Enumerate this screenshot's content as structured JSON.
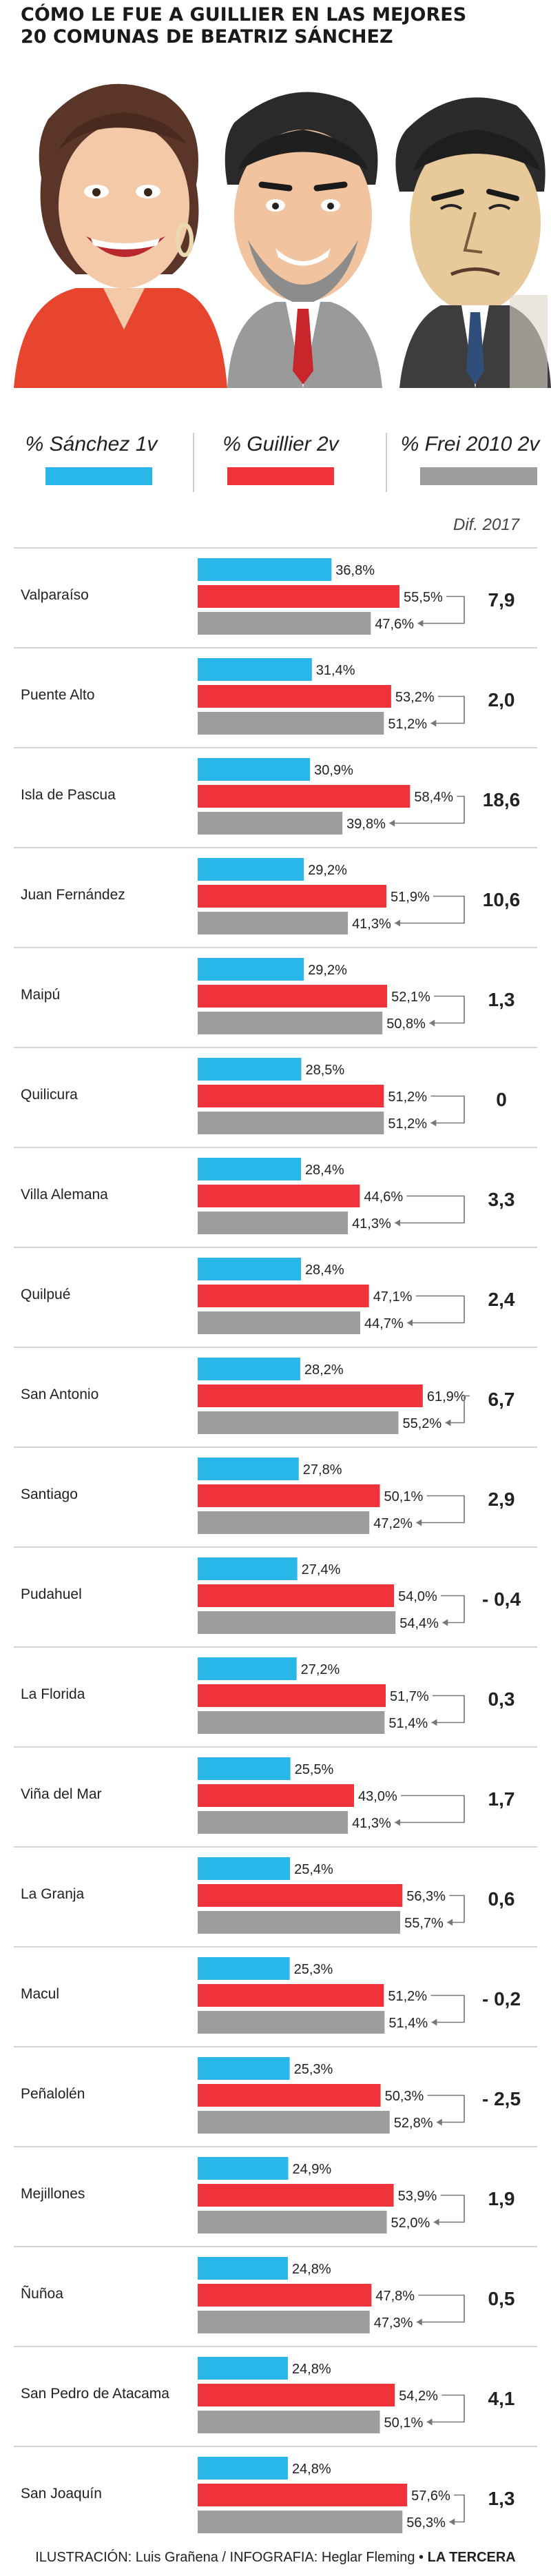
{
  "header": {
    "title_line1": "CÓMO LE FUE A GUILLIER EN LAS MEJORES",
    "title_line2": "20 COMUNAS DE BEATRIZ SÁNCHEZ"
  },
  "colors": {
    "sanchez": "#29b7ea",
    "guillier": "#f0333b",
    "frei": "#9d9d9c"
  },
  "legend": [
    {
      "label": "% Sánchez 1v",
      "color": "#29b7ea"
    },
    {
      "label": "% Guillier 2v",
      "color": "#f0333b"
    },
    {
      "label": "% Frei 2010 2v",
      "color": "#9d9d9c"
    }
  ],
  "dif_header": "Dif. 2017",
  "footer": {
    "credits": "ILUSTRACIÓN: Luis Grañena / INFOGRAFIA: Heglar Fleming •",
    "brand": "LA TERCERA"
  },
  "chart_data": {
    "type": "bar",
    "orientation": "horizontal",
    "categories": [
      "Valparaíso",
      "Puente Alto",
      "Isla de Pascua",
      "Juan Fernández",
      "Maipú",
      "Quilicura",
      "Villa Alemana",
      "Quilpué",
      "San Antonio",
      "Santiago",
      "Pudahuel",
      "La Florida",
      "Viña del Mar",
      "La Granja",
      "Macul",
      "Peñalolén",
      "Mejillones",
      "Ñuñoa",
      "San Pedro de Atacama",
      "San Joaquín"
    ],
    "series": [
      {
        "name": "% Sánchez 1v",
        "color": "#29b7ea",
        "values": [
          36.8,
          31.4,
          30.9,
          29.2,
          29.2,
          28.5,
          28.4,
          28.4,
          28.2,
          27.8,
          27.4,
          27.2,
          25.5,
          25.4,
          25.3,
          25.3,
          24.9,
          24.8,
          24.8,
          24.8
        ],
        "labels": [
          "36,8%",
          "31,4%",
          "30,9%",
          "29,2%",
          "29,2%",
          "28,5%",
          "28,4%",
          "28,4%",
          "28,2%",
          "27,8%",
          "27,4%",
          "27,2%",
          "25,5%",
          "25,4%",
          "25,3%",
          "25,3%",
          "24,9%",
          "24,8%",
          "24,8%",
          "24,8%"
        ]
      },
      {
        "name": "% Guillier 2v",
        "color": "#f0333b",
        "values": [
          55.5,
          53.2,
          58.4,
          51.9,
          52.1,
          51.2,
          44.6,
          47.1,
          61.9,
          50.1,
          54.0,
          51.7,
          43.0,
          56.3,
          51.2,
          50.3,
          53.9,
          47.8,
          54.2,
          57.6
        ],
        "labels": [
          "55,5%",
          "53,2%",
          "58,4%",
          "51,9%",
          "52,1%",
          "51,2%",
          "44,6%",
          "47,1%",
          "61,9%",
          "50,1%",
          "54,0%",
          "51,7%",
          "43,0%",
          "56,3%",
          "51,2%",
          "50,3%",
          "53,9%",
          "47,8%",
          "54,2%",
          "57,6%"
        ]
      },
      {
        "name": "% Frei 2010 2v",
        "color": "#9d9d9c",
        "values": [
          47.6,
          51.2,
          39.8,
          41.3,
          50.8,
          51.2,
          41.3,
          44.7,
          55.2,
          47.2,
          54.4,
          51.4,
          41.3,
          55.7,
          51.4,
          52.8,
          52.0,
          47.3,
          50.1,
          56.3
        ],
        "labels": [
          "47,6%",
          "51,2%",
          "39,8%",
          "41,3%",
          "50,8%",
          "51,2%",
          "41,3%",
          "44,7%",
          "55,2%",
          "47,2%",
          "54,4%",
          "51,4%",
          "41,3%",
          "55,7%",
          "51,4%",
          "52,8%",
          "52,0%",
          "47,3%",
          "50,1%",
          "56,3%"
        ]
      }
    ],
    "dif_2017": [
      "7,9",
      "2,0",
      "18,6",
      "10,6",
      "1,3",
      "0",
      "3,3",
      "2,4",
      "6,7",
      "2,9",
      "- 0,4",
      "0,3",
      "1,7",
      "0,6",
      "- 0,2",
      "- 2,5",
      "1,9",
      "0,5",
      "4,1",
      "1,3"
    ],
    "xlim": [
      0,
      62
    ],
    "grid": false
  }
}
